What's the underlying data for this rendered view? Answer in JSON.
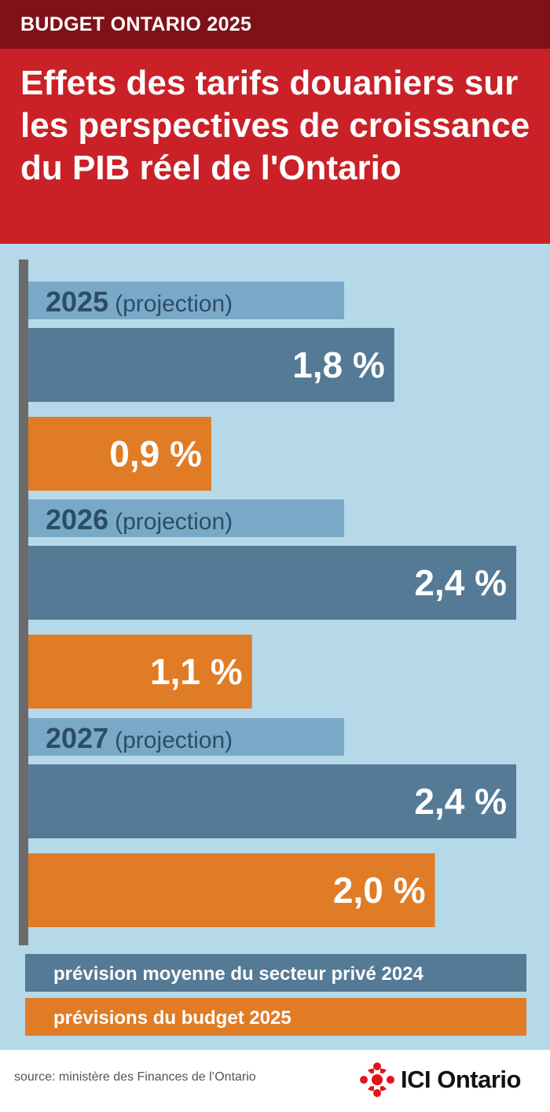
{
  "header": {
    "kicker": "BUDGET ONTARIO 2025",
    "title": "Effets des tarifs douaniers sur les perspectives de croissance du PIB réel de l'Ontario"
  },
  "chart_data": {
    "type": "bar",
    "orientation": "horizontal",
    "title": "Effets des tarifs douaniers sur les perspectives de croissance du PIB réel de l'Ontario",
    "categories": [
      {
        "year": "2025",
        "note": "(projection)"
      },
      {
        "year": "2026",
        "note": "(projection)"
      },
      {
        "year": "2027",
        "note": "(projection)"
      }
    ],
    "series": [
      {
        "name": "prévision moyenne du secteur privé 2024",
        "color": "#557a95",
        "values": [
          1.8,
          2.4,
          2.4
        ],
        "labels": [
          "1,8 %",
          "2,4 %",
          "2,4 %"
        ]
      },
      {
        "name": "prévisions du budget 2025",
        "color": "#e07c26",
        "values": [
          0.9,
          1.1,
          2.0
        ],
        "labels": [
          "0,9 %",
          "1,1 %",
          "2,0 %"
        ]
      }
    ],
    "xlim": [
      0,
      2.45
    ],
    "legend_position": "bottom",
    "grid": false
  },
  "colors": {
    "kicker_bg": "#7f1219",
    "title_bg": "#c92127",
    "chart_bg": "#b5d9e8",
    "year_band": "#7aa9c8",
    "year_text": "#2c4d66",
    "axis": "#6b6b6b"
  },
  "footer": {
    "source": "source: ministère des Finances de l’Ontario",
    "brand": "ICI Ontario",
    "logo_icon": "radio-canada-gem-icon"
  }
}
